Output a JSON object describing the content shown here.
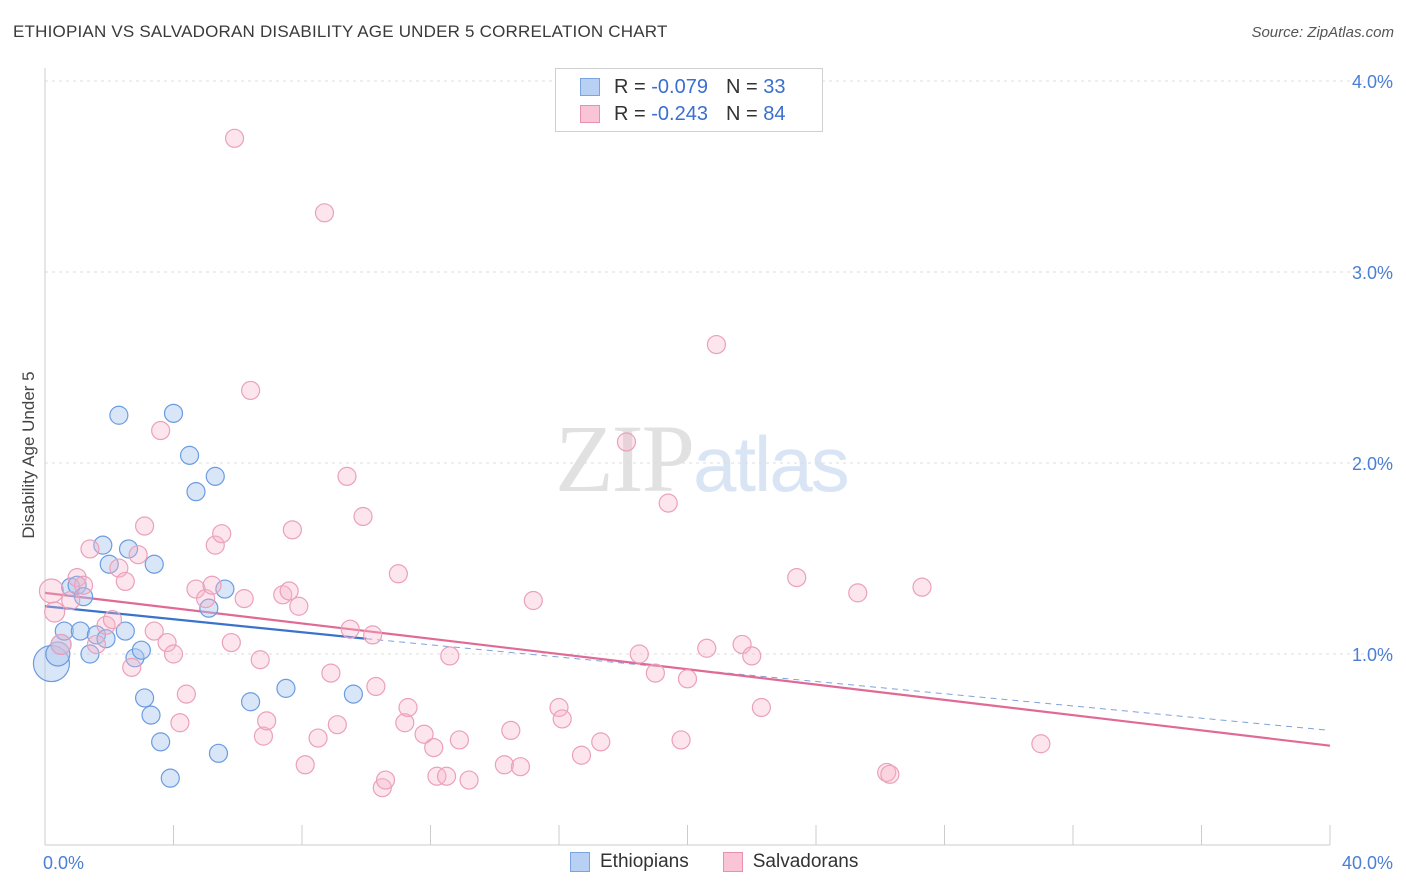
{
  "header": {
    "title": "ETHIOPIAN VS SALVADORAN DISABILITY AGE UNDER 5 CORRELATION CHART",
    "source": "Source: ZipAtlas.com"
  },
  "watermark": {
    "zip": "ZIP",
    "atlas": "atlas"
  },
  "legend": {
    "rows": [
      {
        "r_label": "R =",
        "r_value": "-0.079",
        "n_label": "N =",
        "n_value": "33"
      },
      {
        "r_label": "R =",
        "r_value": "-0.243",
        "n_label": "N =",
        "n_value": "84"
      }
    ]
  },
  "bottom_legend": {
    "ethiopians": "Ethiopians",
    "salvadorans": "Salvadorans"
  },
  "chart_data": {
    "type": "scatter",
    "title": "ETHIOPIAN VS SALVADORAN DISABILITY AGE UNDER 5 CORRELATION CHART",
    "xlabel": "",
    "ylabel": "Disability Age Under 5",
    "xlim": [
      0,
      40
    ],
    "ylim": [
      0,
      4.2
    ],
    "x_tick_labels": [
      "0.0%",
      "40.0%"
    ],
    "y_tick_labels": [
      "1.0%",
      "2.0%",
      "3.0%",
      "4.0%"
    ],
    "y_ticks": [
      1.0,
      2.0,
      3.0,
      4.0
    ],
    "grid": true,
    "colors": {
      "ethiopians": "#4a7fd4",
      "salvadorans": "#e0709a"
    },
    "series": [
      {
        "name": "Ethiopians",
        "color": "#4a7fd4",
        "trend": {
          "x": [
            0,
            10
          ],
          "y": [
            1.25,
            1.08
          ],
          "dashed_to": [
            40,
            0.6
          ]
        },
        "points": [
          [
            0.2,
            0.95,
            18
          ],
          [
            0.4,
            1.0,
            12
          ],
          [
            0.5,
            1.05,
            10
          ],
          [
            0.6,
            1.12,
            9
          ],
          [
            0.8,
            1.35,
            9
          ],
          [
            1.0,
            1.36,
            9
          ],
          [
            1.2,
            1.3,
            9
          ],
          [
            1.1,
            1.12,
            9
          ],
          [
            1.4,
            1.0,
            9
          ],
          [
            1.6,
            1.1,
            9
          ],
          [
            1.8,
            1.57,
            9
          ],
          [
            1.9,
            1.08,
            9
          ],
          [
            2.0,
            1.47,
            9
          ],
          [
            2.3,
            2.25,
            9
          ],
          [
            2.5,
            1.12,
            9
          ],
          [
            2.6,
            1.55,
            9
          ],
          [
            2.8,
            0.98,
            9
          ],
          [
            3.0,
            1.02,
            9
          ],
          [
            3.1,
            0.77,
            9
          ],
          [
            3.3,
            0.68,
            9
          ],
          [
            3.4,
            1.47,
            9
          ],
          [
            3.6,
            0.54,
            9
          ],
          [
            3.9,
            0.35,
            9
          ],
          [
            4.0,
            2.26,
            9
          ],
          [
            4.5,
            2.04,
            9
          ],
          [
            4.7,
            1.85,
            9
          ],
          [
            5.1,
            1.24,
            9
          ],
          [
            5.3,
            1.93,
            9
          ],
          [
            5.4,
            0.48,
            9
          ],
          [
            5.6,
            1.34,
            9
          ],
          [
            6.4,
            0.75,
            9
          ],
          [
            7.5,
            0.82,
            9
          ],
          [
            9.6,
            0.79,
            9
          ]
        ]
      },
      {
        "name": "Salvadorans",
        "color": "#e0709a",
        "trend": {
          "x": [
            0,
            40
          ],
          "y": [
            1.32,
            0.52
          ]
        },
        "points": [
          [
            0.2,
            1.33,
            12
          ],
          [
            0.3,
            1.22,
            10
          ],
          [
            0.5,
            1.05,
            10
          ],
          [
            0.8,
            1.28,
            9
          ],
          [
            1.0,
            1.4,
            9
          ],
          [
            1.2,
            1.36,
            9
          ],
          [
            1.4,
            1.55,
            9
          ],
          [
            1.6,
            1.05,
            9
          ],
          [
            1.9,
            1.15,
            9
          ],
          [
            2.1,
            1.18,
            9
          ],
          [
            2.3,
            1.45,
            9
          ],
          [
            2.5,
            1.38,
            9
          ],
          [
            2.7,
            0.93,
            9
          ],
          [
            2.9,
            1.52,
            9
          ],
          [
            3.1,
            1.67,
            9
          ],
          [
            3.4,
            1.12,
            9
          ],
          [
            3.6,
            2.17,
            9
          ],
          [
            3.8,
            1.06,
            9
          ],
          [
            4.0,
            1.0,
            9
          ],
          [
            4.2,
            0.64,
            9
          ],
          [
            4.4,
            0.79,
            9
          ],
          [
            4.7,
            1.34,
            9
          ],
          [
            5.0,
            1.29,
            9
          ],
          [
            5.2,
            1.36,
            9
          ],
          [
            5.3,
            1.57,
            9
          ],
          [
            5.5,
            1.63,
            9
          ],
          [
            5.8,
            1.06,
            9
          ],
          [
            5.9,
            3.7,
            9
          ],
          [
            6.2,
            1.29,
            9
          ],
          [
            6.4,
            2.38,
            9
          ],
          [
            6.7,
            0.97,
            9
          ],
          [
            6.8,
            0.57,
            9
          ],
          [
            6.9,
            0.65,
            9
          ],
          [
            7.4,
            1.31,
            9
          ],
          [
            7.6,
            1.33,
            9
          ],
          [
            7.7,
            1.65,
            9
          ],
          [
            7.9,
            1.25,
            9
          ],
          [
            8.1,
            0.42,
            9
          ],
          [
            8.5,
            0.56,
            9
          ],
          [
            8.7,
            3.31,
            9
          ],
          [
            8.9,
            0.9,
            9
          ],
          [
            9.1,
            0.63,
            9
          ],
          [
            9.4,
            1.93,
            9
          ],
          [
            9.5,
            1.13,
            9
          ],
          [
            9.9,
            1.72,
            9
          ],
          [
            10.2,
            1.1,
            9
          ],
          [
            10.3,
            0.83,
            9
          ],
          [
            10.5,
            0.3,
            9
          ],
          [
            10.6,
            0.34,
            9
          ],
          [
            11.0,
            1.42,
            9
          ],
          [
            11.2,
            0.64,
            9
          ],
          [
            11.3,
            0.72,
            9
          ],
          [
            11.8,
            0.58,
            9
          ],
          [
            12.1,
            0.51,
            9
          ],
          [
            12.2,
            0.36,
            9
          ],
          [
            12.5,
            0.36,
            9
          ],
          [
            12.6,
            0.99,
            9
          ],
          [
            12.9,
            0.55,
            9
          ],
          [
            13.2,
            0.34,
            9
          ],
          [
            14.3,
            0.42,
            9
          ],
          [
            14.5,
            0.6,
            9
          ],
          [
            14.8,
            0.41,
            9
          ],
          [
            15.2,
            1.28,
            9
          ],
          [
            16.0,
            0.72,
            9
          ],
          [
            16.1,
            0.66,
            9
          ],
          [
            16.7,
            0.47,
            9
          ],
          [
            17.3,
            0.54,
            9
          ],
          [
            18.1,
            2.11,
            9
          ],
          [
            18.5,
            1.0,
            9
          ],
          [
            19.0,
            0.9,
            9
          ],
          [
            19.4,
            1.79,
            9
          ],
          [
            19.8,
            0.55,
            9
          ],
          [
            20.0,
            0.87,
            9
          ],
          [
            20.6,
            1.03,
            9
          ],
          [
            20.9,
            2.62,
            9
          ],
          [
            21.7,
            1.05,
            9
          ],
          [
            22.0,
            0.99,
            9
          ],
          [
            22.3,
            0.72,
            9
          ],
          [
            23.4,
            1.4,
            9
          ],
          [
            25.3,
            1.32,
            9
          ],
          [
            26.2,
            0.38,
            9
          ],
          [
            26.3,
            0.37,
            9
          ],
          [
            27.3,
            1.35,
            9
          ],
          [
            31.0,
            0.53,
            9
          ]
        ]
      }
    ]
  }
}
